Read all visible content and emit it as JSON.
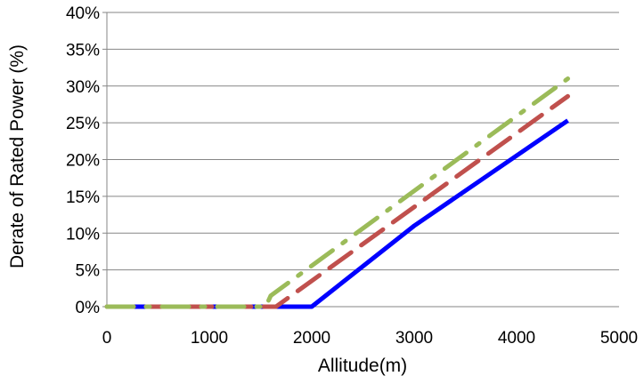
{
  "chart_data": {
    "type": "line",
    "xlabel": "Allitude(m)",
    "ylabel": "Derate of Rated Power (%)",
    "xlim": [
      0,
      5000
    ],
    "ylim": [
      0,
      40
    ],
    "xticks": [
      0,
      1000,
      2000,
      3000,
      4000,
      5000
    ],
    "xtick_labels": [
      "0",
      "1000",
      "2000",
      "3000",
      "4000",
      "5000"
    ],
    "yticks": [
      0,
      5,
      10,
      15,
      20,
      25,
      30,
      35,
      40
    ],
    "ytick_labels": [
      "0%",
      "5%",
      "10%",
      "15%",
      "20%",
      "25%",
      "30%",
      "35%",
      "40%"
    ],
    "grid": "horizontal",
    "legend": "none",
    "series": [
      {
        "color": "#0000ff",
        "style": "solid",
        "points": [
          [
            0,
            0
          ],
          [
            2000,
            0
          ],
          [
            3000,
            11
          ],
          [
            4500,
            25.3
          ]
        ]
      },
      {
        "color": "#c0504d",
        "style": "dashed",
        "points": [
          [
            0,
            0
          ],
          [
            1600,
            0
          ],
          [
            1650,
            0
          ],
          [
            4500,
            28.6
          ]
        ]
      },
      {
        "color": "#9bbb59",
        "style": "dash-dot",
        "points": [
          [
            0,
            0
          ],
          [
            1550,
            0
          ],
          [
            1600,
            1.5
          ],
          [
            4500,
            31
          ]
        ]
      }
    ]
  }
}
